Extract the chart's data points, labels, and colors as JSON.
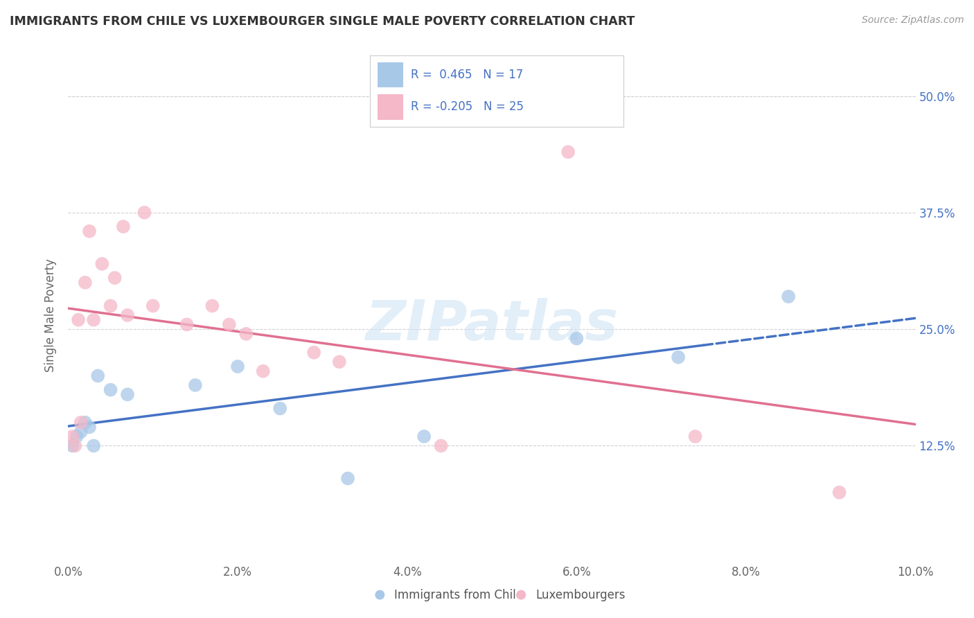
{
  "title": "IMMIGRANTS FROM CHILE VS LUXEMBOURGER SINGLE MALE POVERTY CORRELATION CHART",
  "source": "Source: ZipAtlas.com",
  "ylabel": "Single Male Poverty",
  "x_tick_labels": [
    "0.0%",
    "2.0%",
    "4.0%",
    "6.0%",
    "8.0%",
    "10.0%"
  ],
  "x_tick_vals": [
    0.0,
    2.0,
    4.0,
    6.0,
    8.0,
    10.0
  ],
  "y_tick_labels_right": [
    "12.5%",
    "25.0%",
    "37.5%",
    "50.0%"
  ],
  "y_tick_vals_right": [
    12.5,
    25.0,
    37.5,
    50.0
  ],
  "xlim": [
    0.0,
    10.0
  ],
  "ylim": [
    0.0,
    53.0
  ],
  "blue_color": "#a8c8e8",
  "pink_color": "#f4b8c8",
  "blue_line_color": "#4472c4",
  "pink_line_color": "#e07090",
  "legend_text_color": "#4472c4",
  "legend_r_color": "#4472c4",
  "watermark_text": "ZIPatlas",
  "watermark_color": "#d0e4f4",
  "blue_scatter_x": [
    0.05,
    0.1,
    0.15,
    0.2,
    0.25,
    0.3,
    0.35,
    0.5,
    0.7,
    1.5,
    2.0,
    2.5,
    3.3,
    4.2,
    6.0,
    7.2,
    8.5
  ],
  "blue_scatter_y": [
    12.5,
    13.5,
    14.0,
    15.0,
    14.5,
    12.5,
    20.0,
    18.5,
    18.0,
    19.0,
    21.0,
    16.5,
    9.0,
    13.5,
    24.0,
    22.0,
    28.5
  ],
  "pink_scatter_x": [
    0.05,
    0.08,
    0.12,
    0.15,
    0.2,
    0.25,
    0.3,
    0.4,
    0.5,
    0.55,
    0.65,
    0.7,
    0.9,
    1.0,
    1.4,
    1.7,
    1.9,
    2.1,
    2.3,
    2.9,
    3.2,
    4.4,
    5.9,
    7.4,
    9.1
  ],
  "pink_scatter_y": [
    13.5,
    12.5,
    26.0,
    15.0,
    30.0,
    35.5,
    26.0,
    32.0,
    27.5,
    30.5,
    36.0,
    26.5,
    37.5,
    27.5,
    25.5,
    27.5,
    25.5,
    24.5,
    20.5,
    22.5,
    21.5,
    12.5,
    44.0,
    13.5,
    7.5
  ],
  "blue_trend_start": 0.0,
  "blue_trend_solid_end": 7.5,
  "blue_trend_dash_end": 10.0,
  "pink_trend_start": 0.0,
  "pink_trend_end": 10.0,
  "grid_color": "#d0d0d8",
  "grid_top_y": 50.0,
  "background_color": "#ffffff"
}
